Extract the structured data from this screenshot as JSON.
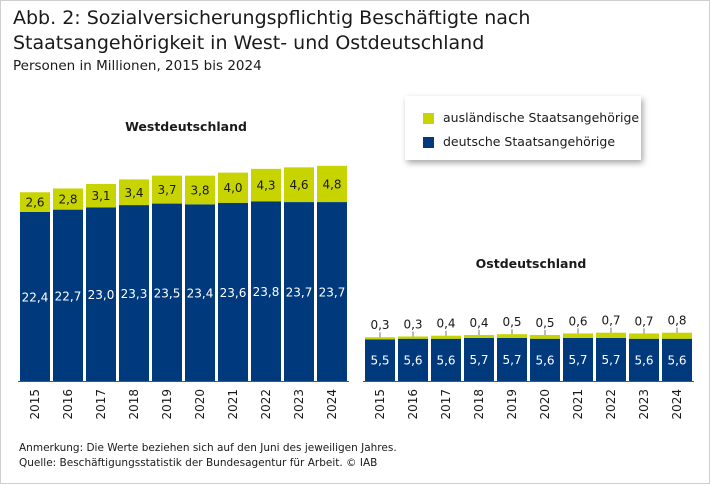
{
  "title": "Abb. 2: Sozialversicherungspflichtig Beschäftigte nach Staatsangehörigkeit in West- und Ostdeutschland",
  "subtitle": "Personen in Millionen, 2015 bis 2024",
  "legend": {
    "foreign_label": "ausländische Staatsangehörige",
    "german_label": "deutsche Staatsangehörige"
  },
  "colors": {
    "german": "#003a7d",
    "foreign": "#c8d400"
  },
  "notes": {
    "remark": "Anmerkung: Die Werte beziehen sich auf den Juni des jeweiligen Jahres.",
    "source": "Quelle: Beschäftigungsstatistik der Bundesagentur für Arbeit. © IAB"
  },
  "chart_data": [
    {
      "type": "bar",
      "stacked": true,
      "title": "Westdeutschland",
      "categories": [
        "2015",
        "2016",
        "2017",
        "2018",
        "2019",
        "2020",
        "2021",
        "2022",
        "2023",
        "2024"
      ],
      "series": [
        {
          "name": "deutsche Staatsangehörige",
          "values": [
            22.4,
            22.7,
            23.0,
            23.3,
            23.5,
            23.4,
            23.6,
            23.8,
            23.7,
            23.7
          ]
        },
        {
          "name": "ausländische Staatsangehörige",
          "values": [
            2.6,
            2.8,
            3.1,
            3.4,
            3.7,
            3.8,
            4.0,
            4.3,
            4.6,
            4.8
          ]
        }
      ]
    },
    {
      "type": "bar",
      "stacked": true,
      "title": "Ostdeutschland",
      "categories": [
        "2015",
        "2016",
        "2017",
        "2018",
        "2019",
        "2020",
        "2021",
        "2022",
        "2023",
        "2024"
      ],
      "series": [
        {
          "name": "deutsche Staatsangehörige",
          "values": [
            5.5,
            5.6,
            5.6,
            5.7,
            5.7,
            5.6,
            5.7,
            5.7,
            5.6,
            5.6
          ]
        },
        {
          "name": "ausländische Staatsangehörige",
          "values": [
            0.3,
            0.3,
            0.4,
            0.4,
            0.5,
            0.5,
            0.6,
            0.7,
            0.7,
            0.8
          ]
        }
      ]
    }
  ]
}
